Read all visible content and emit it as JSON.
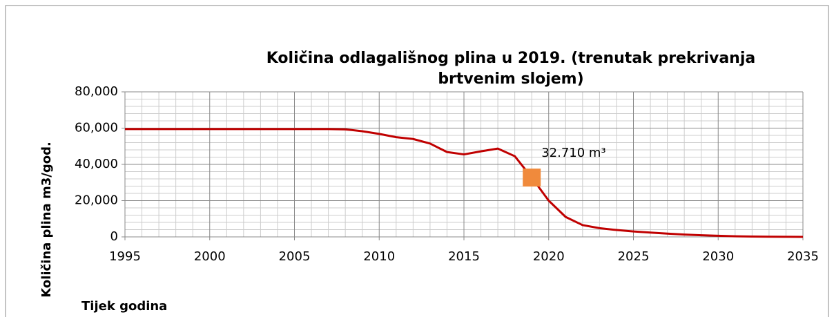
{
  "chart_data": {
    "type": "line",
    "title": "Količina odlagališnog plina u 2019. (trenutak prekrivanja brtvenim slojem)",
    "x_label": "Tijek godina",
    "y_label": "Količina plina m3/god.",
    "x": [
      1995,
      1996,
      1997,
      1998,
      1999,
      2000,
      2001,
      2002,
      2003,
      2004,
      2005,
      2006,
      2007,
      2008,
      2009,
      2010,
      2011,
      2012,
      2013,
      2014,
      2015,
      2016,
      2017,
      2018,
      2019,
      2020,
      2021,
      2022,
      2023,
      2024,
      2025,
      2026,
      2027,
      2028,
      2029,
      2030,
      2031,
      2032,
      2033,
      2034,
      2035
    ],
    "series": [
      {
        "color": "#c00000",
        "values": [
          59500,
          59500,
          59500,
          59500,
          59500,
          59500,
          59500,
          59500,
          59500,
          59500,
          59500,
          59500,
          59500,
          59300,
          58300,
          56800,
          55000,
          54000,
          51500,
          46800,
          45500,
          47200,
          48700,
          44500,
          32710,
          20000,
          11000,
          6500,
          4800,
          3800,
          3000,
          2400,
          1800,
          1300,
          900,
          600,
          350,
          200,
          100,
          50,
          20
        ]
      }
    ],
    "highlight": {
      "x": 2019,
      "value": 32710,
      "color": "#f08a3c",
      "value_label": "32.710 m³"
    },
    "xlim": [
      1995,
      2035
    ],
    "xticks": [
      1995,
      2000,
      2005,
      2010,
      2015,
      2020,
      2025,
      2030,
      2035
    ],
    "ylim": [
      0,
      80000
    ],
    "yticks": [
      0,
      {
        "value": 20000,
        "label": "20,000"
      },
      {
        "value": 40000,
        "label": "40,000"
      },
      {
        "value": 60000,
        "label": "60,000"
      },
      {
        "value": 80000,
        "label": "80,000"
      }
    ],
    "grid": true,
    "minor_grid": true
  }
}
